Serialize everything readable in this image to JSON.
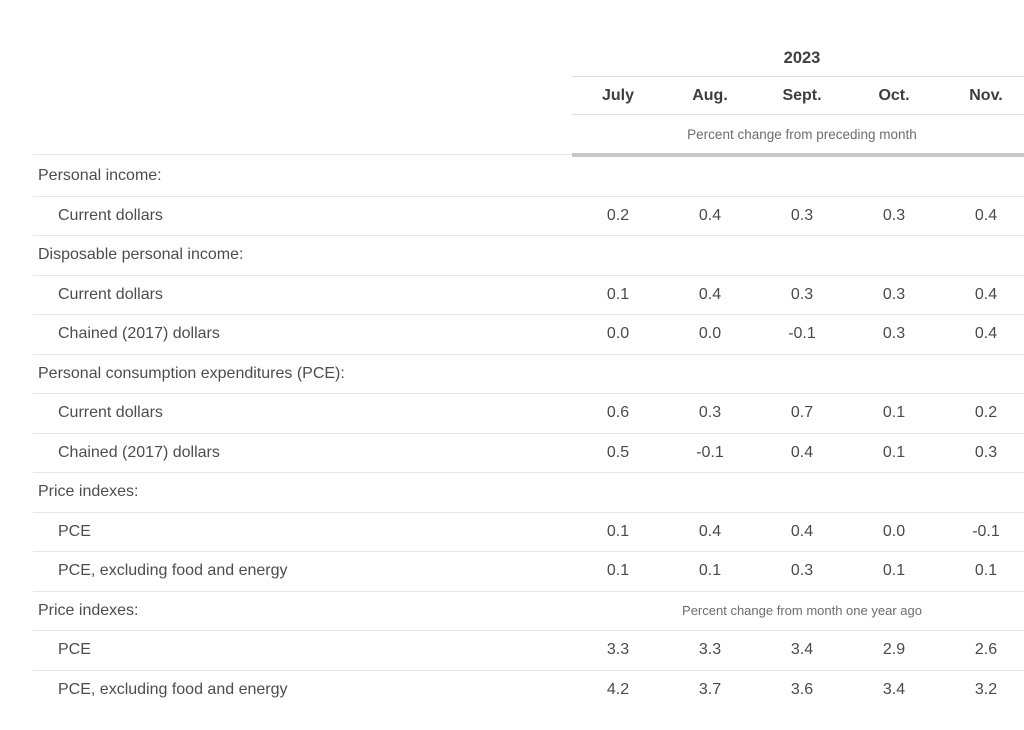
{
  "table": {
    "year": "2023",
    "months": [
      "July",
      "Aug.",
      "Sept.",
      "Oct.",
      "Nov."
    ],
    "unit_note_top": "Percent change from preceding month",
    "rows": [
      {
        "label": "Personal income:",
        "type": "section",
        "values": []
      },
      {
        "label": "Current dollars",
        "type": "data",
        "values": [
          "0.2",
          "0.4",
          "0.3",
          "0.3",
          "0.4"
        ]
      },
      {
        "label": "Disposable personal income:",
        "type": "section",
        "values": []
      },
      {
        "label": "Current dollars",
        "type": "data",
        "values": [
          "0.1",
          "0.4",
          "0.3",
          "0.3",
          "0.4"
        ]
      },
      {
        "label": "Chained (2017) dollars",
        "type": "data",
        "values": [
          "0.0",
          "0.0",
          "-0.1",
          "0.3",
          "0.4"
        ]
      },
      {
        "label": "Personal consumption expenditures (PCE):",
        "type": "section",
        "values": []
      },
      {
        "label": "Current dollars",
        "type": "data",
        "values": [
          "0.6",
          "0.3",
          "0.7",
          "0.1",
          "0.2"
        ]
      },
      {
        "label": "Chained (2017) dollars",
        "type": "data",
        "values": [
          "0.5",
          "-0.1",
          "0.4",
          "0.1",
          "0.3"
        ]
      },
      {
        "label": "Price indexes:",
        "type": "section",
        "values": []
      },
      {
        "label": "PCE",
        "type": "data",
        "values": [
          "0.1",
          "0.4",
          "0.4",
          "0.0",
          "-0.1"
        ]
      },
      {
        "label": "PCE, excluding food and energy",
        "type": "data",
        "values": [
          "0.1",
          "0.1",
          "0.3",
          "0.1",
          "0.1"
        ]
      },
      {
        "label": "Price indexes:",
        "type": "section",
        "note": "Percent change from month one year ago",
        "values": []
      },
      {
        "label": "PCE",
        "type": "data",
        "values": [
          "3.3",
          "3.3",
          "3.4",
          "2.9",
          "2.6"
        ]
      },
      {
        "label": "PCE, excluding food and energy",
        "type": "data",
        "values": [
          "4.2",
          "3.7",
          "3.6",
          "3.4",
          "3.2"
        ]
      }
    ],
    "colors": {
      "header_text": "#3e3e3e",
      "body_text": "#4a4a4a",
      "note_text": "#6d6d6d",
      "row_border": "#e5e5e5",
      "thick_separator": "#c6c6c6"
    }
  },
  "chart_data": {
    "type": "table",
    "title": "2023",
    "categories": [
      "July",
      "Aug.",
      "Sept.",
      "Oct.",
      "Nov."
    ],
    "sections": [
      {
        "unit": "Percent change from preceding month",
        "series": [
          {
            "name": "Personal income: Current dollars",
            "values": [
              0.2,
              0.4,
              0.3,
              0.3,
              0.4
            ]
          },
          {
            "name": "Disposable personal income: Current dollars",
            "values": [
              0.1,
              0.4,
              0.3,
              0.3,
              0.4
            ]
          },
          {
            "name": "Disposable personal income: Chained (2017) dollars",
            "values": [
              0.0,
              0.0,
              -0.1,
              0.3,
              0.4
            ]
          },
          {
            "name": "Personal consumption expenditures (PCE): Current dollars",
            "values": [
              0.6,
              0.3,
              0.7,
              0.1,
              0.2
            ]
          },
          {
            "name": "Personal consumption expenditures (PCE): Chained (2017) dollars",
            "values": [
              0.5,
              -0.1,
              0.4,
              0.1,
              0.3
            ]
          },
          {
            "name": "Price indexes: PCE",
            "values": [
              0.1,
              0.4,
              0.4,
              0.0,
              -0.1
            ]
          },
          {
            "name": "Price indexes: PCE, excluding food and energy",
            "values": [
              0.1,
              0.1,
              0.3,
              0.1,
              0.1
            ]
          }
        ]
      },
      {
        "unit": "Percent change from month one year ago",
        "series": [
          {
            "name": "Price indexes: PCE",
            "values": [
              3.3,
              3.3,
              3.4,
              2.9,
              2.6
            ]
          },
          {
            "name": "Price indexes: PCE, excluding food and energy",
            "values": [
              4.2,
              3.7,
              3.6,
              3.4,
              3.2
            ]
          }
        ]
      }
    ]
  }
}
